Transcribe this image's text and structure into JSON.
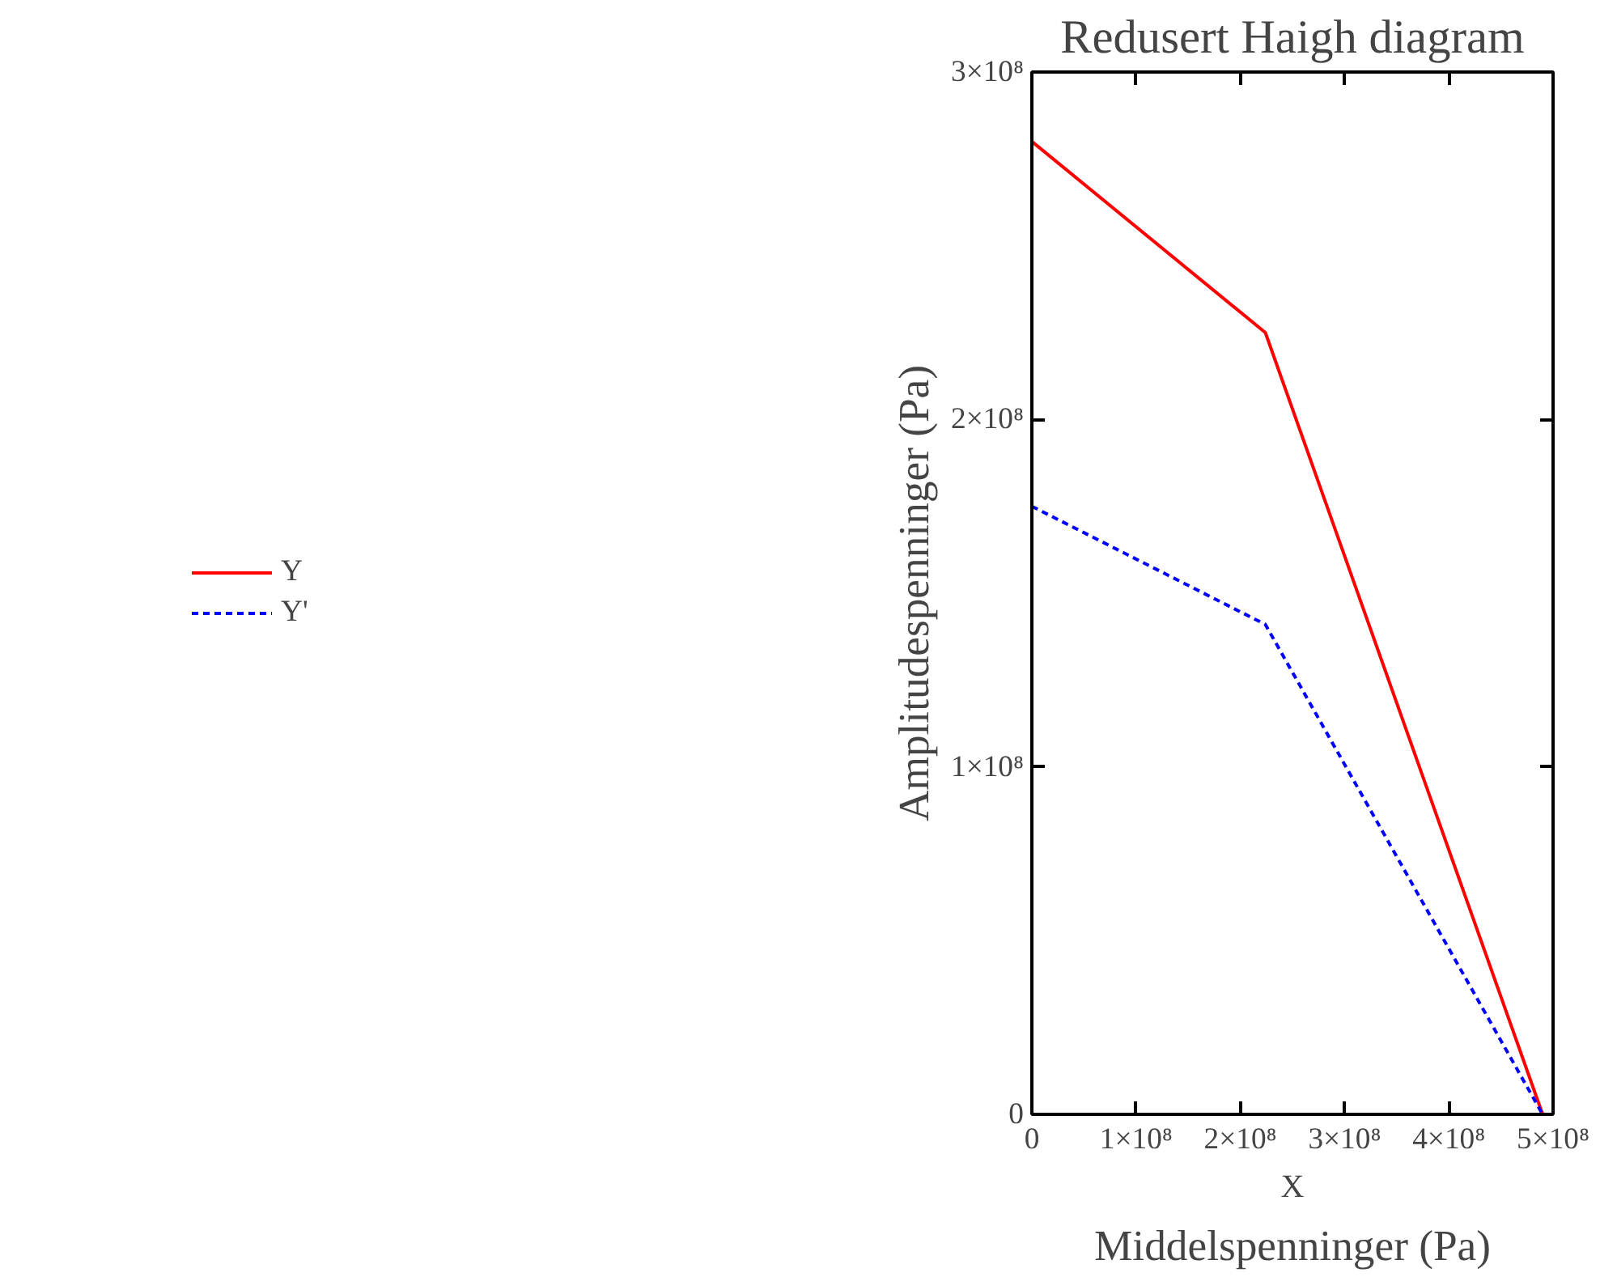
{
  "chart_data": {
    "type": "line",
    "title": "Redusert Haigh diagram",
    "xlabel": "X",
    "ylabel": "Amplitudespenninger (Pa)",
    "annotations": [
      "Middelspenninger (Pa)"
    ],
    "series": [
      {
        "name": "Y",
        "color": "#ff0000",
        "line_style": "solid",
        "x": [
          0,
          224000000,
          490000000
        ],
        "values": [
          280000000,
          225000000,
          0
        ]
      },
      {
        "name": "Y'",
        "color": "#0000ff",
        "line_style": "dashed",
        "x": [
          0,
          224000000,
          490000000
        ],
        "values": [
          175000000,
          141000000,
          0
        ]
      }
    ],
    "xlim": [
      0,
      500000000
    ],
    "ylim": [
      0,
      300000000
    ],
    "xticks": [
      0,
      {
        "value": 100000000,
        "label": "1×10⁸"
      },
      {
        "value": 200000000,
        "label": "2×10⁸"
      },
      {
        "value": 300000000,
        "label": "3×10⁸"
      },
      {
        "value": 400000000,
        "label": "4×10⁸"
      },
      {
        "value": 500000000,
        "label": "5×10⁸"
      }
    ],
    "yticks": [
      0,
      {
        "value": 100000000,
        "label": "1×10⁸"
      },
      {
        "value": 200000000,
        "label": "2×10⁸"
      },
      {
        "value": 300000000,
        "label": "3×10⁸"
      }
    ],
    "grid": false,
    "legend": "left",
    "marker": "none"
  }
}
